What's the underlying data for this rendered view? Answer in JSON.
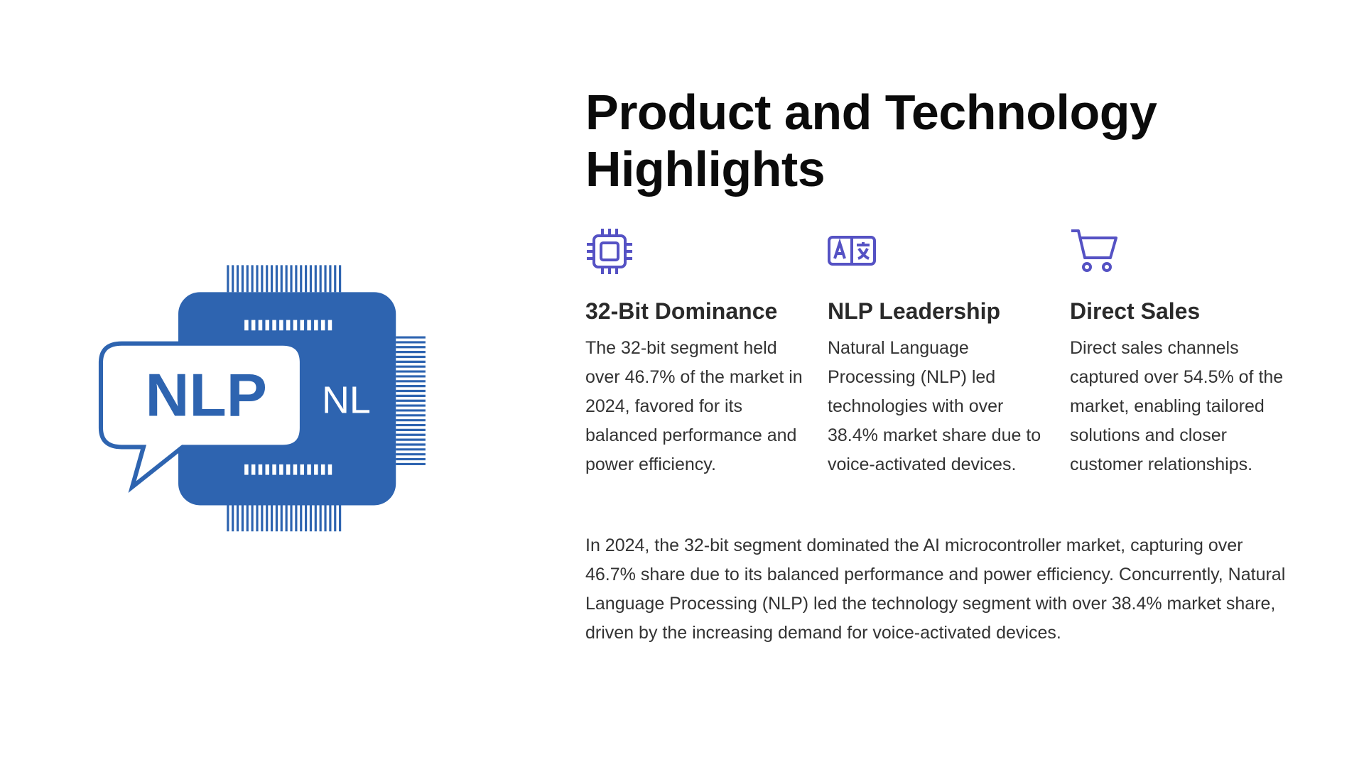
{
  "title": "Product and Technology Highlights",
  "illustration": {
    "label_main": "NLP",
    "label_side": "NL"
  },
  "cards": [
    {
      "heading": "32-Bit Dominance",
      "text": "The 32-bit segment held over 46.7% of the market in 2024, favored for its balanced performance and power efficiency."
    },
    {
      "heading": "NLP Leadership",
      "text": "Natural Language Processing (NLP) led technologies with over 38.4% market share due to voice-activated devices."
    },
    {
      "heading": "Direct Sales",
      "text": "Direct sales channels captured over 54.5% of the market, enabling tailored solutions and closer customer relationships."
    }
  ],
  "summary": "In 2024, the 32-bit segment dominated the AI microcontroller market, capturing over 46.7% share due to its balanced performance and power efficiency. Concurrently, Natural Language Processing (NLP) led the technology segment with over 38.4% market share, driven by the increasing demand for voice-activated devices."
}
